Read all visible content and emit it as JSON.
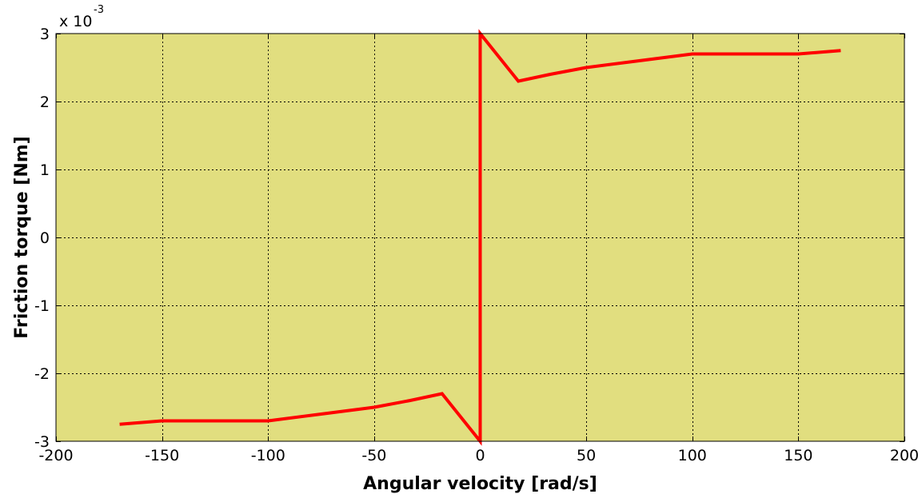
{
  "chart_data": {
    "type": "line",
    "title": "",
    "xlabel": "Angular velocity [rad/s]",
    "ylabel": "Friction torque [Nm]",
    "xlim": [
      -200,
      200
    ],
    "ylim": [
      -3,
      3
    ],
    "y_multiplier_base": "x 10",
    "y_multiplier_exponent": "-3",
    "x_ticks": [
      -200,
      -150,
      -100,
      -50,
      0,
      50,
      100,
      150,
      200
    ],
    "y_ticks": [
      -3,
      -2,
      -1,
      0,
      1,
      2,
      3
    ],
    "x_tick_labels": [
      "-200",
      "-150",
      "-100",
      "-50",
      "0",
      "50",
      "100",
      "150",
      "200"
    ],
    "y_tick_labels": [
      "-3",
      "-2",
      "-1",
      "0",
      "1",
      "2",
      "3"
    ],
    "grid": true,
    "grid_style": "dotted",
    "plot_background": "#e1de7f",
    "series": [
      {
        "color": "#ff0000",
        "x": [
          -170,
          -150,
          -100,
          -75,
          -50,
          -33,
          -18,
          0,
          0,
          18,
          33,
          50,
          75,
          100,
          150,
          170
        ],
        "y": [
          -2.75,
          -2.7,
          -2.7,
          -2.6,
          -2.5,
          -2.4,
          -2.3,
          -3.0,
          3.0,
          2.3,
          2.4,
          2.5,
          2.6,
          2.7,
          2.7,
          2.75
        ]
      }
    ]
  }
}
